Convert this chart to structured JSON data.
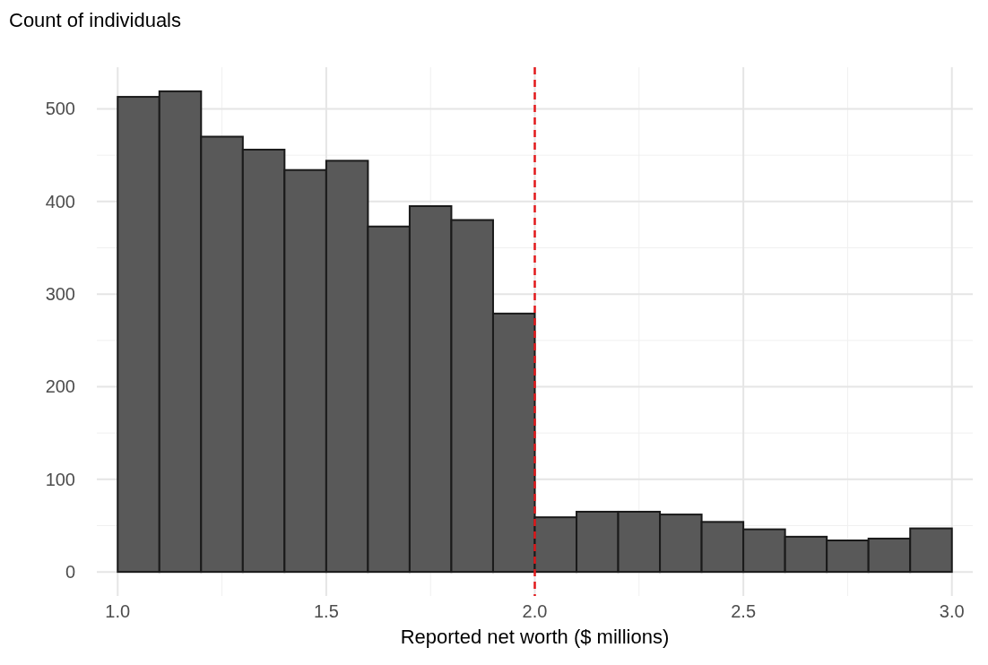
{
  "chart_data": {
    "type": "histogram",
    "ylabel": "Count of individuals",
    "xlabel": "Reported net worth ($ millions)",
    "bins": [
      1.0,
      1.1,
      1.2,
      1.3,
      1.4,
      1.5,
      1.6,
      1.7,
      1.8,
      1.9,
      2.0,
      2.1,
      2.2,
      2.3,
      2.4,
      2.5,
      2.6,
      2.7,
      2.8,
      2.9,
      3.0
    ],
    "values": [
      513,
      519,
      470,
      456,
      434,
      444,
      373,
      395,
      380,
      279,
      59,
      65,
      65,
      62,
      54,
      46,
      38,
      34,
      36,
      47
    ],
    "color": "#595959",
    "xlim": [
      0.95,
      3.05
    ],
    "xticks": [
      {
        "value": 1.0,
        "label": "1.0"
      },
      1.5,
      {
        "value": 2.0,
        "label": "2.0"
      },
      2.5,
      {
        "value": 3.0,
        "label": "3.0"
      }
    ],
    "ylim": [
      -26,
      545
    ],
    "yticks": [
      0,
      100,
      200,
      300,
      400,
      500
    ],
    "grid": true,
    "ref_lines": [
      {
        "axis": "x",
        "value": 2.0,
        "color": "#e31a1c",
        "line_style": "dashed"
      }
    ]
  }
}
